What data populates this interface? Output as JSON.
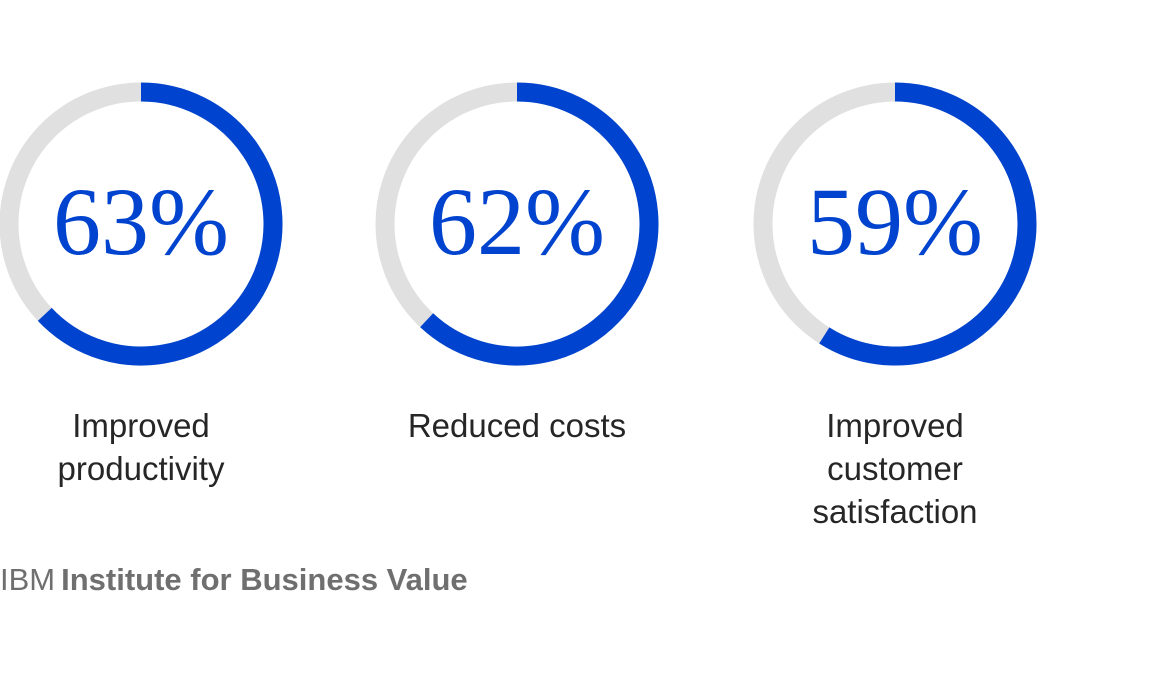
{
  "chart_data": {
    "type": "progress-ring",
    "categories": [
      "Improved productivity",
      "Reduced costs",
      "Improved customer satisfaction"
    ],
    "values": [
      63,
      62,
      59
    ],
    "value_labels": [
      "63%",
      "62%",
      "59%"
    ],
    "ylim": [
      0,
      100
    ],
    "color": "#0043ce",
    "track_color": "#e0e0e0"
  },
  "source": {
    "brand": "IBM",
    "name": "Institute for Business Value"
  }
}
